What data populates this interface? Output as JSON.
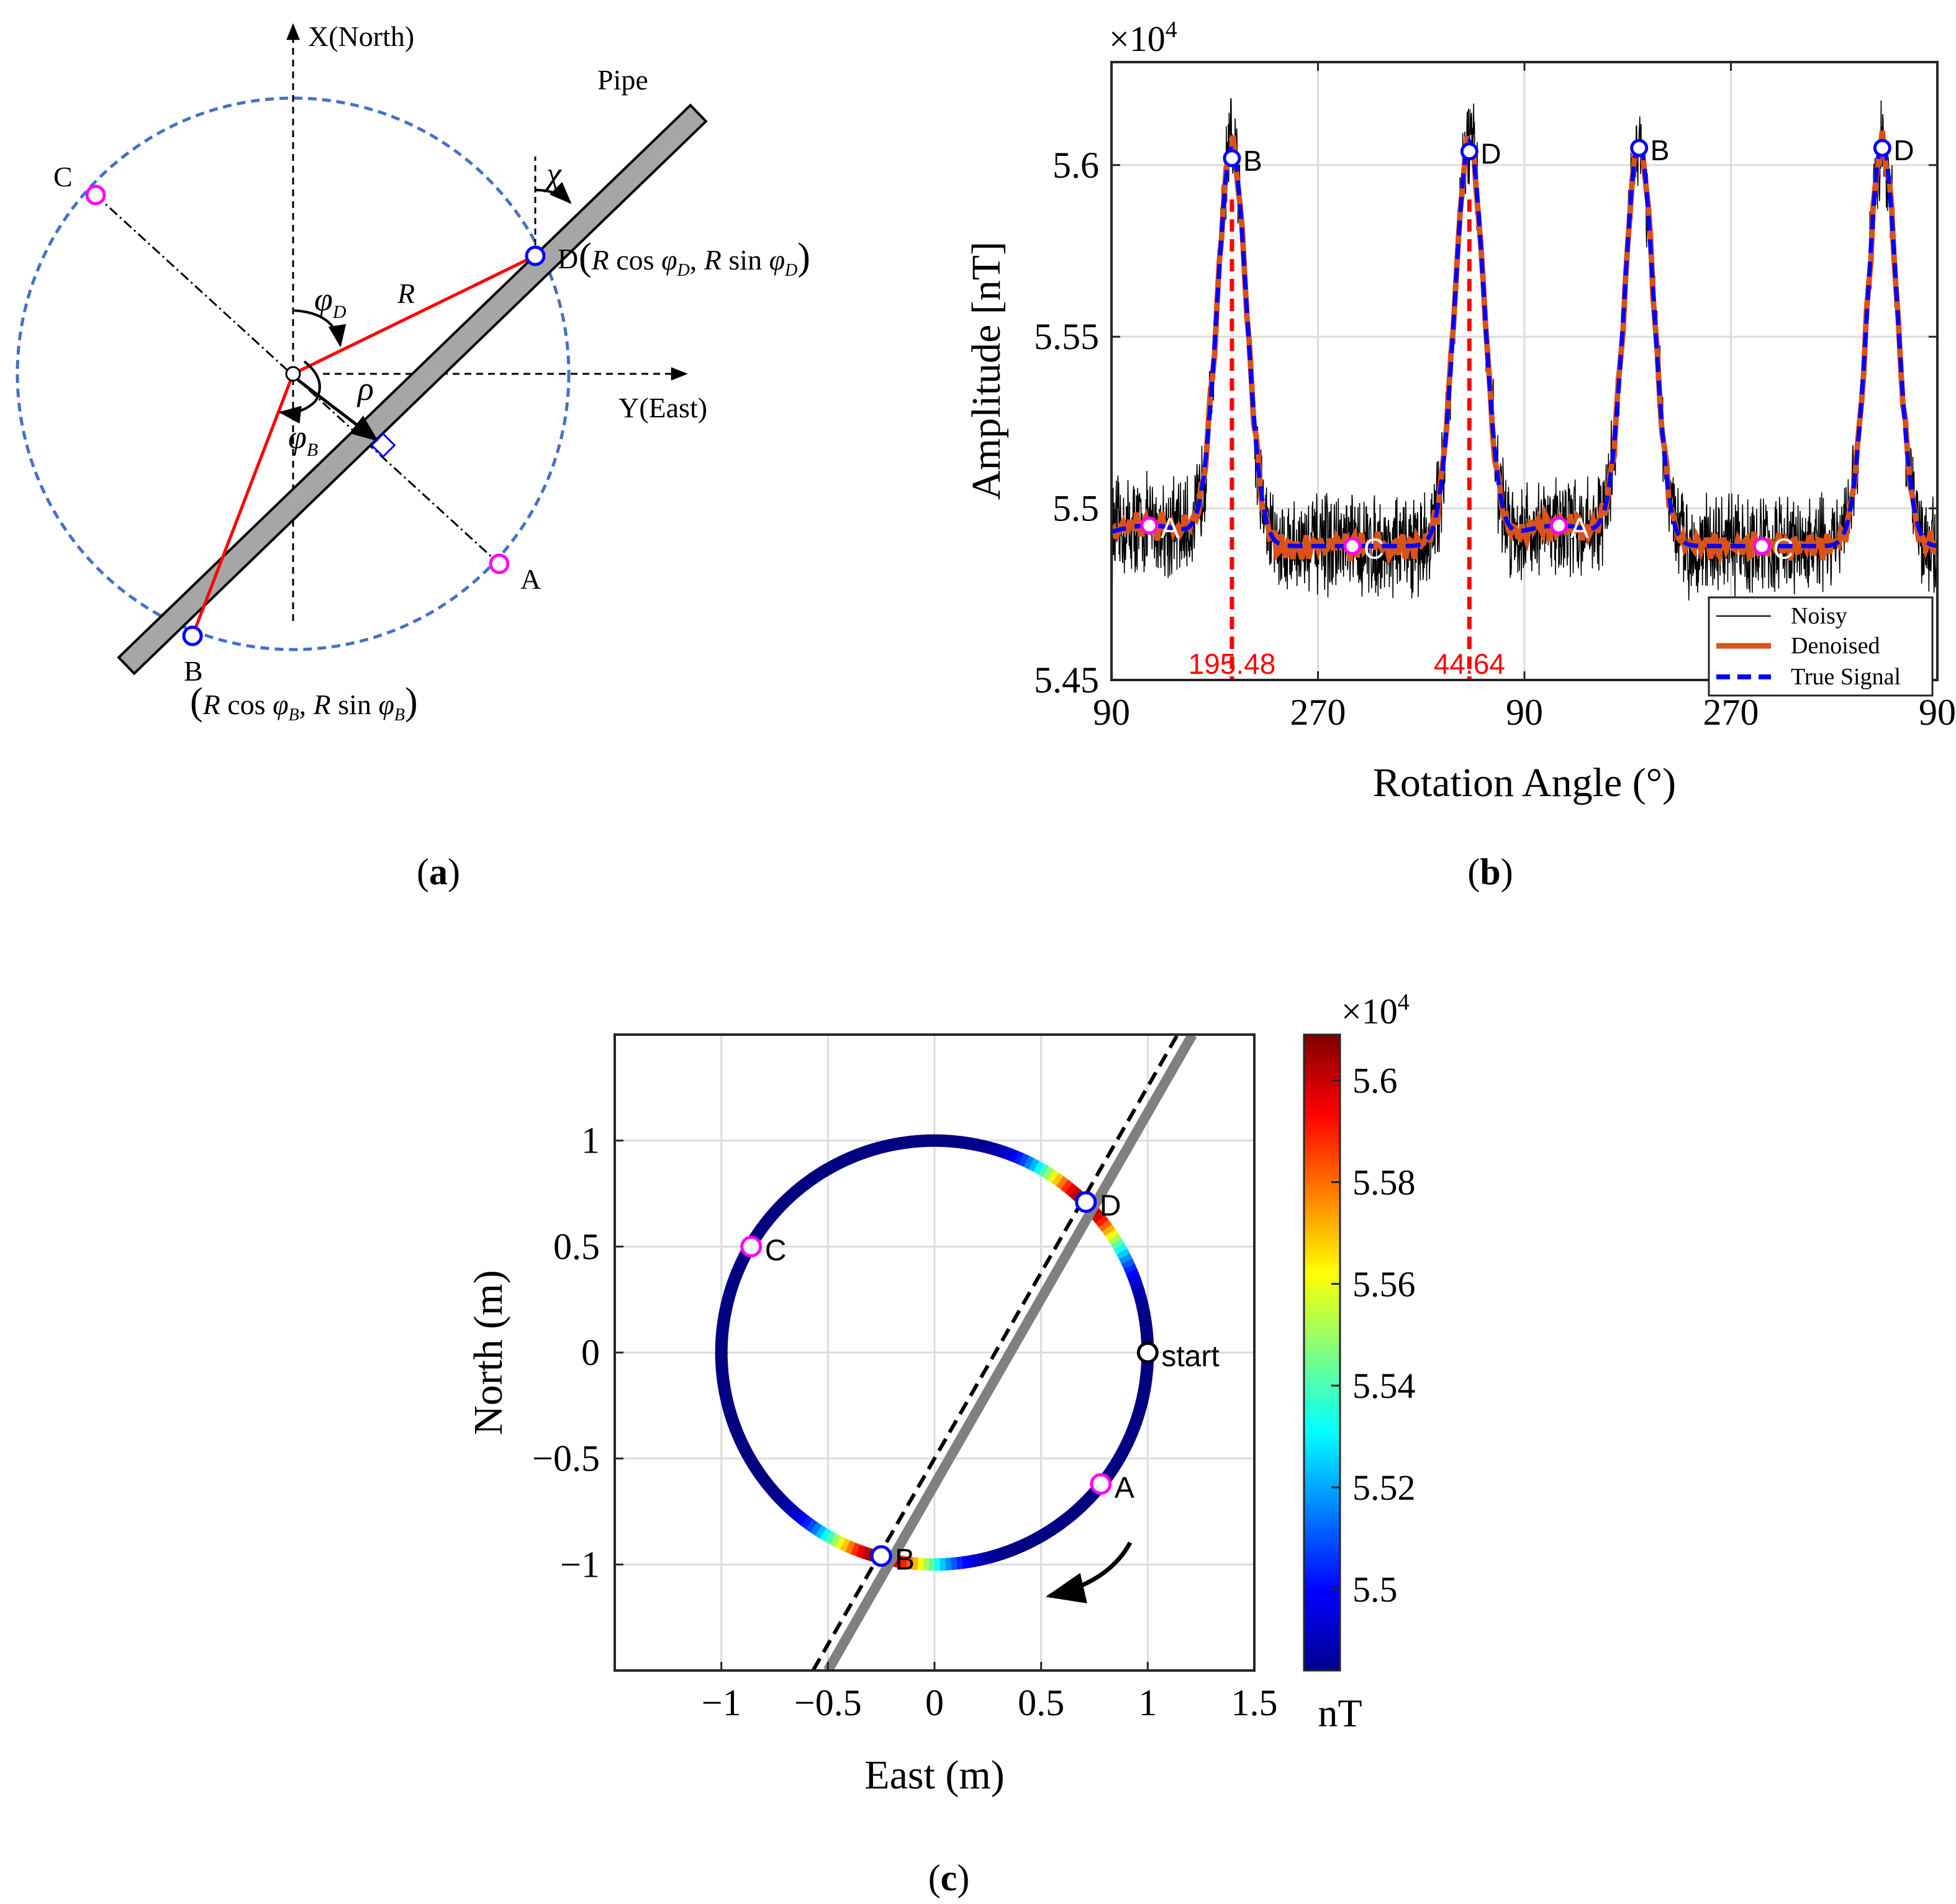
{
  "panels": {
    "a": {
      "label": "a"
    },
    "b": {
      "label": "b"
    },
    "c": {
      "label": "c"
    }
  },
  "diagram_a": {
    "axis_north": "X(North)",
    "axis_east": "Y(East)",
    "pipe_label": "Pipe",
    "chi": "χ",
    "R_label": "R",
    "phi_D": "φ",
    "phi_D_sub": "D",
    "phi_B": "φ",
    "phi_B_sub": "B",
    "rho": "ρ",
    "point_A": "A",
    "point_B": "B",
    "point_C": "C",
    "point_D": "D",
    "coord_D": {
      "open": "(",
      "rc": "R",
      "cos": " cos ",
      "phi": "φ",
      "sub": "D",
      "comma": ", ",
      "rs": "R",
      "sin": " sin ",
      "close": ")"
    },
    "coord_B": {
      "open": "(",
      "rc": "R",
      "cos": " cos ",
      "phi": "φ",
      "sub": "B",
      "comma": ", ",
      "rs": "R",
      "sin": " sin ",
      "close": ")"
    },
    "colors": {
      "circle": "#4472c4",
      "red": "#ff0000",
      "pipe": "#a6a6a6",
      "magenta": "#ff00ff",
      "blue": "#0000ff"
    }
  },
  "chart_data": [
    {
      "id": "b",
      "type": "line",
      "title": "",
      "xlabel": "Rotation Angle (°)",
      "ylabel": "Amplitude [nT]",
      "y_multiplier": "×10",
      "y_multiplier_exp": "4",
      "ylim": [
        5.45,
        5.63
      ],
      "yticks": [
        5.45,
        5.5,
        5.55,
        5.6
      ],
      "ytick_labels": [
        "5.45",
        "5.5",
        "5.55",
        "5.6"
      ],
      "xlim": [
        0,
        720
      ],
      "xticks": [
        0,
        180,
        360,
        540,
        720
      ],
      "xtick_labels": [
        "90",
        "270",
        "90",
        "270",
        "90"
      ],
      "grid": true,
      "legend": {
        "position": "bottom-right",
        "entries": [
          "Noisy",
          "Denoised",
          "True Signal"
        ]
      },
      "series_colors": {
        "Noisy": "#000000",
        "Denoised": "#d95319",
        "True Signal": "#0000ff"
      },
      "signal_model": {
        "baseline": 5.489,
        "rest": 5.495,
        "peaks": [
          [
            105,
            5.604
          ],
          [
            312,
            5.606
          ],
          [
            460,
            5.606
          ],
          [
            672,
            5.607
          ]
        ],
        "width_deg": 18,
        "noise_amp": 0.012
      },
      "markers": [
        {
          "label": "A",
          "x": 33,
          "y": 5.495,
          "color": "#ff00ff"
        },
        {
          "label": "B",
          "x": 105,
          "y": 5.602,
          "color": "#0000ff"
        },
        {
          "label": "C",
          "x": 210,
          "y": 5.489,
          "color": "#ff00ff"
        },
        {
          "label": "D",
          "x": 312,
          "y": 5.604,
          "color": "#0000ff"
        },
        {
          "label": "A",
          "x": 390,
          "y": 5.495,
          "color": "#ff00ff"
        },
        {
          "label": "B",
          "x": 460,
          "y": 5.605,
          "color": "#0000ff"
        },
        {
          "label": "C",
          "x": 567,
          "y": 5.489,
          "color": "#ff00ff"
        },
        {
          "label": "D",
          "x": 672,
          "y": 5.605,
          "color": "#0000ff"
        }
      ],
      "vlines": [
        {
          "x": 105,
          "label": "195.48",
          "color": "#ff0000"
        },
        {
          "x": 312,
          "label": "44.64",
          "color": "#ff0000"
        }
      ]
    },
    {
      "id": "c",
      "type": "scatter",
      "title": "",
      "xlabel": "East (m)",
      "ylabel": "North (m)",
      "xlim": [
        -1.5,
        1.5
      ],
      "ylim": [
        -1.5,
        1.5
      ],
      "xticks": [
        -1,
        -0.5,
        0,
        0.5,
        1,
        1.5
      ],
      "xtick_labels": [
        "−1",
        "−0.5",
        "0",
        "0.5",
        "1",
        "1.5"
      ],
      "yticks": [
        -1,
        -0.5,
        0,
        0.5,
        1
      ],
      "ytick_labels": [
        "−1",
        "−0.5",
        "0",
        "0.5",
        "1"
      ],
      "grid": true,
      "circle_radius": 1.0,
      "pipe_line": {
        "x1": -0.5,
        "y1": -1.5,
        "x2": 1.21,
        "y2": 1.5,
        "color": "#808080"
      },
      "true_line": {
        "x1": -0.57,
        "y1": -1.5,
        "x2": 1.14,
        "y2": 1.5,
        "color": "#000000"
      },
      "markers": [
        {
          "label": "A",
          "x": 0.78,
          "y": -0.62,
          "color": "#ff00ff"
        },
        {
          "label": "B",
          "x": -0.25,
          "y": -0.96,
          "color": "#0000ff"
        },
        {
          "label": "C",
          "x": -0.86,
          "y": 0.5,
          "color": "#ff00ff"
        },
        {
          "label": "D",
          "x": 0.71,
          "y": 0.71,
          "color": "#0000ff"
        },
        {
          "label": "start",
          "x": 1.0,
          "y": 0.0,
          "color": "#000000"
        }
      ],
      "colorbar": {
        "label": "nT",
        "multiplier": "×10",
        "multiplier_exp": "4",
        "min": 5.484,
        "max": 5.609,
        "ticks": [
          5.5,
          5.52,
          5.54,
          5.56,
          5.58,
          5.6
        ],
        "tick_labels": [
          "5.5",
          "5.52",
          "5.54",
          "5.56",
          "5.58",
          "5.6"
        ],
        "colormap": "jet"
      }
    }
  ]
}
